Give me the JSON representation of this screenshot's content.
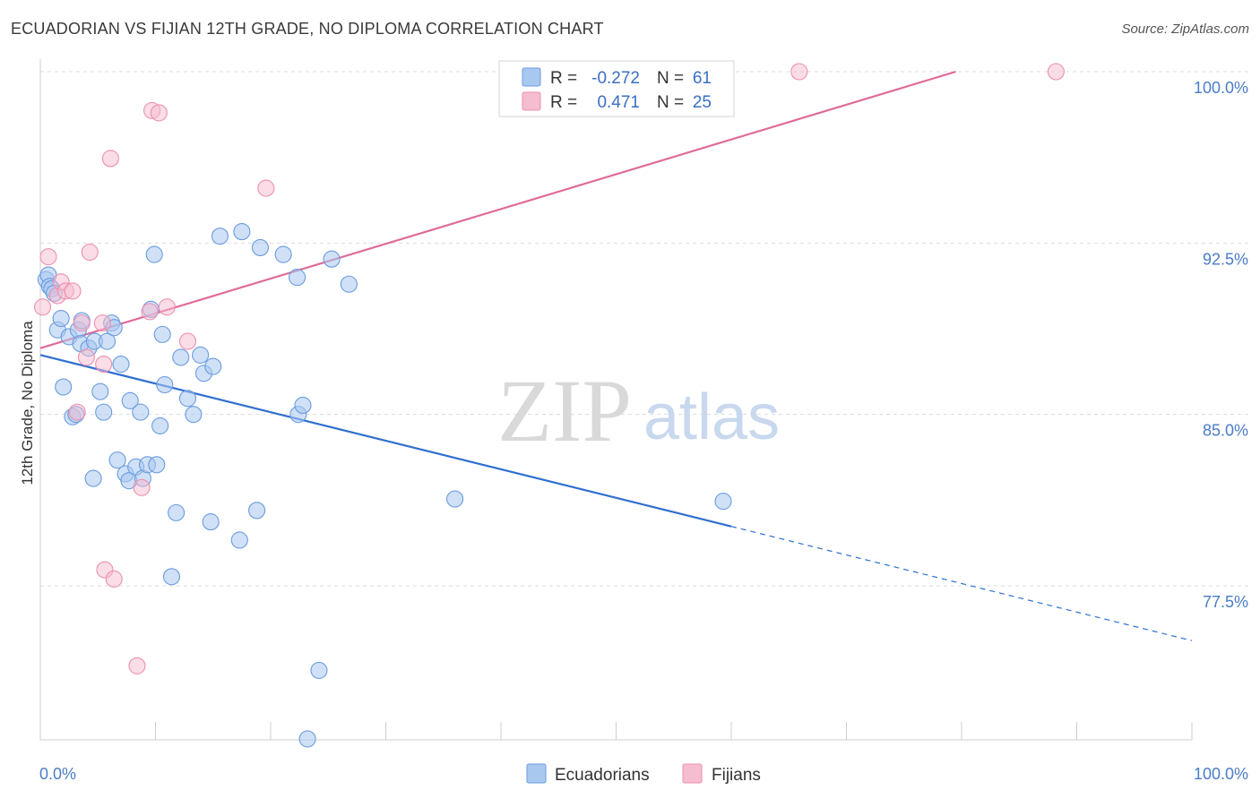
{
  "header": {
    "title": "ECUADORIAN VS FIJIAN 12TH GRADE, NO DIPLOMA CORRELATION CHART",
    "source": "Source: ZipAtlas.com"
  },
  "watermark": {
    "zip": "ZIP",
    "atlas": "atlas"
  },
  "colors": {
    "blue_fill": "#a9c8f0",
    "blue_stroke": "#6a9be0",
    "blue_line": "#2f6fd0",
    "pink_fill": "#f6bcd0",
    "pink_stroke": "#ec8fb0",
    "pink_line": "#e0699a",
    "grid": "#dcdcdc",
    "tick_text": "#4a7cc7"
  },
  "legend": {
    "rows": [
      {
        "r_label": "R =",
        "r_value": "-0.272",
        "n_label": "N =",
        "n_value": "61"
      },
      {
        "r_label": "R =",
        "r_value": "0.471",
        "n_label": "N =",
        "n_value": "25"
      }
    ]
  },
  "bottom_legend": [
    "Ecuadorians",
    "Fijians"
  ],
  "chart_data": {
    "type": "scatter",
    "title": "ECUADORIAN VS FIJIAN 12TH GRADE, NO DIPLOMA CORRELATION CHART",
    "xlabel": "",
    "ylabel": "12th Grade, No Diploma",
    "xlim": [
      0,
      100
    ],
    "ylim": [
      70.5,
      101
    ],
    "x_tick_labels": [
      "0.0%",
      "100.0%"
    ],
    "y_ticks": [
      77.5,
      85.0,
      92.5,
      100.0
    ],
    "y_tick_labels": [
      "77.5%",
      "85.0%",
      "92.5%",
      "100.0%"
    ],
    "series": [
      {
        "name": "Ecuadorians",
        "r": -0.272,
        "n": 61,
        "trend": {
          "x0": 0,
          "y0": 87.6,
          "x1": 60,
          "y1": 80.1,
          "dash_to_x": 100,
          "dash_to_y": 75.1
        },
        "points": [
          [
            0.5,
            90.9
          ],
          [
            0.7,
            91.1
          ],
          [
            0.8,
            90.6
          ],
          [
            1.0,
            90.5
          ],
          [
            1.2,
            90.3
          ],
          [
            1.5,
            88.7
          ],
          [
            1.8,
            89.2
          ],
          [
            2.0,
            86.2
          ],
          [
            2.5,
            88.4
          ],
          [
            2.8,
            84.9
          ],
          [
            3.1,
            85.0
          ],
          [
            3.3,
            88.7
          ],
          [
            3.5,
            88.1
          ],
          [
            3.6,
            89.1
          ],
          [
            4.2,
            87.9
          ],
          [
            4.7,
            88.2
          ],
          [
            4.6,
            82.2
          ],
          [
            5.2,
            86.0
          ],
          [
            5.5,
            85.1
          ],
          [
            5.8,
            88.2
          ],
          [
            6.2,
            89.0
          ],
          [
            6.4,
            88.8
          ],
          [
            6.7,
            83.0
          ],
          [
            7.0,
            87.2
          ],
          [
            7.4,
            82.4
          ],
          [
            7.7,
            82.1
          ],
          [
            7.8,
            85.6
          ],
          [
            8.3,
            82.7
          ],
          [
            8.7,
            85.1
          ],
          [
            8.9,
            82.2
          ],
          [
            9.3,
            82.8
          ],
          [
            9.6,
            89.6
          ],
          [
            9.9,
            92.0
          ],
          [
            10.1,
            82.8
          ],
          [
            10.4,
            84.5
          ],
          [
            10.6,
            88.5
          ],
          [
            10.8,
            86.3
          ],
          [
            11.4,
            77.9
          ],
          [
            11.8,
            80.7
          ],
          [
            12.2,
            87.5
          ],
          [
            12.8,
            85.7
          ],
          [
            13.3,
            85.0
          ],
          [
            13.9,
            87.6
          ],
          [
            14.2,
            86.8
          ],
          [
            14.8,
            80.3
          ],
          [
            15.0,
            87.1
          ],
          [
            15.6,
            92.8
          ],
          [
            17.3,
            79.5
          ],
          [
            17.5,
            93.0
          ],
          [
            18.8,
            80.8
          ],
          [
            19.1,
            92.3
          ],
          [
            21.1,
            92.0
          ],
          [
            22.3,
            91.0
          ],
          [
            22.4,
            85.0
          ],
          [
            22.8,
            85.4
          ],
          [
            23.2,
            70.8
          ],
          [
            24.2,
            73.8
          ],
          [
            25.3,
            91.8
          ],
          [
            26.8,
            90.7
          ],
          [
            36.0,
            81.3
          ],
          [
            59.3,
            81.2
          ]
        ]
      },
      {
        "name": "Fijians",
        "r": 0.471,
        "n": 25,
        "trend": {
          "x0": 0,
          "y0": 87.9,
          "x1": 79.5,
          "y1": 100.0
        },
        "points": [
          [
            0.2,
            89.7
          ],
          [
            0.7,
            91.9
          ],
          [
            1.5,
            90.2
          ],
          [
            1.8,
            90.8
          ],
          [
            2.2,
            90.4
          ],
          [
            2.8,
            90.4
          ],
          [
            3.2,
            85.1
          ],
          [
            4.0,
            87.5
          ],
          [
            4.3,
            92.1
          ],
          [
            5.4,
            89.0
          ],
          [
            5.5,
            87.2
          ],
          [
            5.6,
            78.2
          ],
          [
            6.4,
            77.8
          ],
          [
            6.1,
            96.2
          ],
          [
            8.4,
            74.0
          ],
          [
            8.8,
            81.8
          ],
          [
            9.5,
            89.5
          ],
          [
            9.7,
            98.3
          ],
          [
            10.3,
            98.2
          ],
          [
            11.0,
            89.7
          ],
          [
            12.8,
            88.2
          ],
          [
            19.6,
            94.9
          ],
          [
            65.9,
            100.0
          ],
          [
            88.2,
            100.0
          ],
          [
            3.6,
            89.0
          ]
        ]
      }
    ]
  }
}
